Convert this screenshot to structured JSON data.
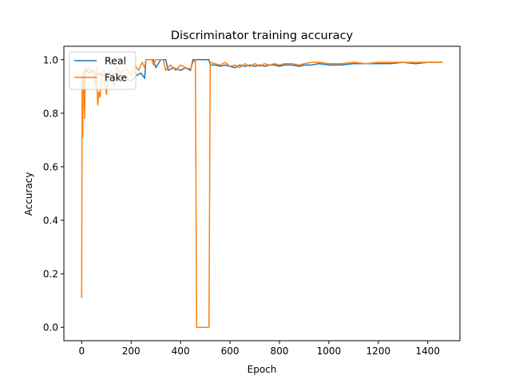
{
  "chart_data": {
    "type": "line",
    "title": "Discriminator training accuracy",
    "xlabel": "Epoch",
    "ylabel": "Accuracy",
    "xlim": [
      -72,
      1530
    ],
    "ylim": [
      -0.05,
      1.05
    ],
    "xticks": [
      0,
      200,
      400,
      600,
      800,
      1000,
      1200,
      1400
    ],
    "yticks": [
      0.0,
      0.2,
      0.4,
      0.6,
      0.8,
      1.0
    ],
    "xtick_labels": [
      "0",
      "200",
      "400",
      "600",
      "800",
      "1000",
      "1200",
      "1400"
    ],
    "ytick_labels": [
      "0.0",
      "0.2",
      "0.4",
      "0.6",
      "0.8",
      "1.0"
    ],
    "legend_position": "top-left",
    "grid": false,
    "series": [
      {
        "name": "Real",
        "color": "#1f77b4",
        "points": [
          [
            0,
            0.9
          ],
          [
            3,
            0.93
          ],
          [
            6,
            0.95
          ],
          [
            10,
            0.96
          ],
          [
            15,
            0.95
          ],
          [
            20,
            0.96
          ],
          [
            30,
            0.95
          ],
          [
            40,
            0.96
          ],
          [
            50,
            0.95
          ],
          [
            60,
            0.94
          ],
          [
            70,
            0.95
          ],
          [
            80,
            0.94
          ],
          [
            100,
            0.95
          ],
          [
            120,
            0.94
          ],
          [
            140,
            0.95
          ],
          [
            160,
            0.94
          ],
          [
            180,
            0.93
          ],
          [
            200,
            0.92
          ],
          [
            220,
            0.94
          ],
          [
            240,
            0.95
          ],
          [
            255,
            0.93
          ],
          [
            260,
            1.0
          ],
          [
            290,
            1.0
          ],
          [
            300,
            0.97
          ],
          [
            320,
            1.0
          ],
          [
            340,
            1.0
          ],
          [
            350,
            0.96
          ],
          [
            370,
            0.97
          ],
          [
            400,
            0.96
          ],
          [
            420,
            0.97
          ],
          [
            440,
            0.96
          ],
          [
            450,
            1.0
          ],
          [
            515,
            1.0
          ],
          [
            520,
            0.98
          ],
          [
            540,
            0.98
          ],
          [
            560,
            0.975
          ],
          [
            580,
            0.98
          ],
          [
            600,
            0.975
          ],
          [
            620,
            0.97
          ],
          [
            640,
            0.98
          ],
          [
            660,
            0.975
          ],
          [
            680,
            0.98
          ],
          [
            700,
            0.975
          ],
          [
            720,
            0.98
          ],
          [
            740,
            0.975
          ],
          [
            760,
            0.98
          ],
          [
            780,
            0.98
          ],
          [
            800,
            0.975
          ],
          [
            820,
            0.98
          ],
          [
            850,
            0.98
          ],
          [
            880,
            0.975
          ],
          [
            900,
            0.98
          ],
          [
            930,
            0.98
          ],
          [
            960,
            0.985
          ],
          [
            1000,
            0.98
          ],
          [
            1050,
            0.98
          ],
          [
            1100,
            0.985
          ],
          [
            1150,
            0.985
          ],
          [
            1200,
            0.985
          ],
          [
            1250,
            0.985
          ],
          [
            1300,
            0.99
          ],
          [
            1350,
            0.985
          ],
          [
            1400,
            0.99
          ],
          [
            1450,
            0.99
          ],
          [
            1460,
            0.99
          ]
        ]
      },
      {
        "name": "Fake",
        "color": "#ff7f0e",
        "points": [
          [
            0,
            0.11
          ],
          [
            2,
            0.9
          ],
          [
            4,
            0.71
          ],
          [
            6,
            0.95
          ],
          [
            9,
            0.96
          ],
          [
            12,
            0.78
          ],
          [
            15,
            0.97
          ],
          [
            20,
            0.96
          ],
          [
            30,
            0.97
          ],
          [
            40,
            0.95
          ],
          [
            50,
            0.96
          ],
          [
            55,
            0.9
          ],
          [
            60,
            0.97
          ],
          [
            65,
            0.83
          ],
          [
            70,
            0.88
          ],
          [
            75,
            0.86
          ],
          [
            80,
            0.95
          ],
          [
            90,
            0.96
          ],
          [
            100,
            0.87
          ],
          [
            110,
            0.95
          ],
          [
            120,
            0.96
          ],
          [
            130,
            0.9
          ],
          [
            140,
            0.97
          ],
          [
            150,
            0.96
          ],
          [
            160,
            0.95
          ],
          [
            180,
            0.97
          ],
          [
            200,
            0.94
          ],
          [
            215,
            0.98
          ],
          [
            230,
            0.96
          ],
          [
            245,
            0.99
          ],
          [
            255,
            0.97
          ],
          [
            260,
            1.0
          ],
          [
            285,
            1.0
          ],
          [
            290,
            0.98
          ],
          [
            300,
            1.0
          ],
          [
            330,
            1.0
          ],
          [
            340,
            0.96
          ],
          [
            360,
            0.98
          ],
          [
            380,
            0.96
          ],
          [
            400,
            0.98
          ],
          [
            420,
            0.97
          ],
          [
            440,
            0.965
          ],
          [
            450,
            0.99
          ],
          [
            460,
            1.0
          ],
          [
            465,
            0.0
          ],
          [
            515,
            0.0
          ],
          [
            520,
            0.99
          ],
          [
            540,
            0.985
          ],
          [
            560,
            0.98
          ],
          [
            580,
            0.99
          ],
          [
            600,
            0.975
          ],
          [
            620,
            0.98
          ],
          [
            640,
            0.97
          ],
          [
            660,
            0.985
          ],
          [
            680,
            0.975
          ],
          [
            700,
            0.985
          ],
          [
            720,
            0.975
          ],
          [
            740,
            0.985
          ],
          [
            760,
            0.98
          ],
          [
            780,
            0.985
          ],
          [
            800,
            0.98
          ],
          [
            820,
            0.985
          ],
          [
            850,
            0.985
          ],
          [
            880,
            0.98
          ],
          [
            900,
            0.985
          ],
          [
            930,
            0.99
          ],
          [
            960,
            0.99
          ],
          [
            1000,
            0.985
          ],
          [
            1050,
            0.985
          ],
          [
            1100,
            0.99
          ],
          [
            1150,
            0.985
          ],
          [
            1200,
            0.99
          ],
          [
            1250,
            0.99
          ],
          [
            1300,
            0.99
          ],
          [
            1350,
            0.99
          ],
          [
            1400,
            0.99
          ],
          [
            1450,
            0.99
          ],
          [
            1460,
            0.99
          ]
        ]
      }
    ]
  }
}
